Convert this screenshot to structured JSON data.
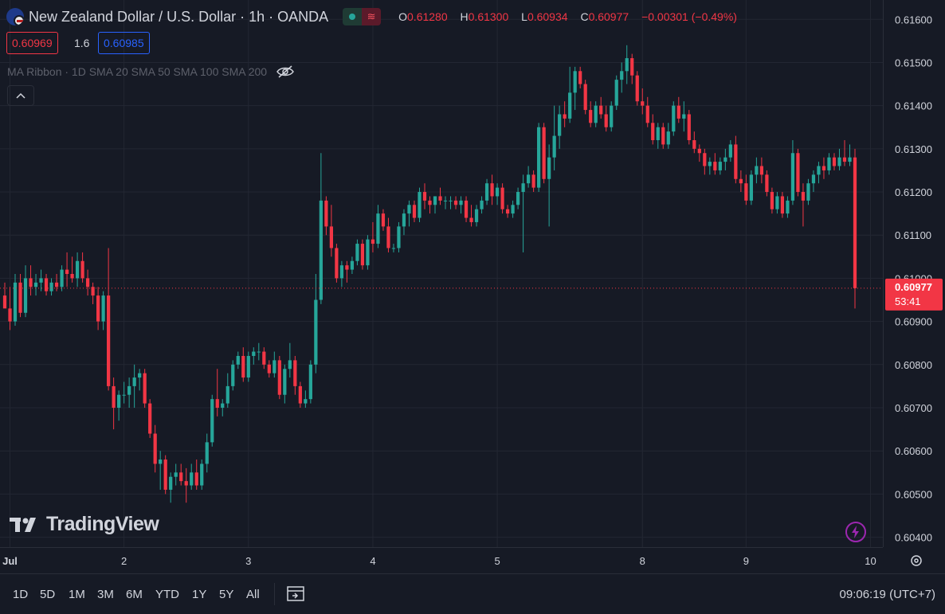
{
  "header": {
    "symbol_title": "New Zealand Dollar / U.S. Dollar · 1h · OANDA",
    "ohlc": {
      "o_label": "O",
      "o": "0.61280",
      "h_label": "H",
      "h": "0.61300",
      "l_label": "L",
      "l": "0.60934",
      "c_label": "C",
      "c": "0.60977",
      "change": "−0.00301 (−0.49%)"
    },
    "sell_price": "0.60969",
    "spread": "1.6",
    "buy_price": "0.60985"
  },
  "indicator": {
    "label": "MA Ribbon · 1D SMA 20 SMA 50 SMA 100 SMA 200",
    "icon": "eye-off-icon"
  },
  "collapse_icon": "chevron-up-icon",
  "logo_text": "TradingView",
  "current_price": {
    "value": "0.60977",
    "countdown": "53:41"
  },
  "timeframes": [
    "1D",
    "5D",
    "1M",
    "3M",
    "6M",
    "YTD",
    "1Y",
    "5Y",
    "All"
  ],
  "clock": "09:06:19 (UTC+7)",
  "colors": {
    "bg": "#161a25",
    "up": "#26a69a",
    "down": "#f23645",
    "grid": "#232733",
    "text": "#d1d4dc"
  },
  "chart_data": {
    "type": "candlestick",
    "ylim": [
      0.6039,
      0.6163
    ],
    "yticks": [
      "0.61600",
      "0.61500",
      "0.61400",
      "0.61300",
      "0.61200",
      "0.61100",
      "0.61000",
      "0.60900",
      "0.60800",
      "0.60700",
      "0.60600",
      "0.60500",
      "0.60400"
    ],
    "ytick_values": [
      0.616,
      0.615,
      0.614,
      0.613,
      0.612,
      0.611,
      0.61,
      0.609,
      0.608,
      0.607,
      0.606,
      0.605,
      0.604
    ],
    "xticks": [
      "Jul",
      "2",
      "3",
      "4",
      "5",
      "8",
      "9",
      "10"
    ],
    "xtick_bar_index": [
      1,
      23,
      47,
      71,
      95,
      123,
      143,
      167
    ],
    "current_price": 0.60977,
    "candles": [
      [
        0.6096,
        0.6099,
        0.6094,
        0.6093
      ],
      [
        0.6093,
        0.6098,
        0.6088,
        0.609
      ],
      [
        0.609,
        0.6101,
        0.6089,
        0.6099
      ],
      [
        0.6099,
        0.6101,
        0.6091,
        0.6092
      ],
      [
        0.6092,
        0.6103,
        0.6091,
        0.61
      ],
      [
        0.61,
        0.6103,
        0.6096,
        0.6098
      ],
      [
        0.6098,
        0.6101,
        0.6096,
        0.6099
      ],
      [
        0.6099,
        0.6102,
        0.6097,
        0.61
      ],
      [
        0.61,
        0.6101,
        0.6096,
        0.6097
      ],
      [
        0.6097,
        0.61,
        0.6096,
        0.6099
      ],
      [
        0.6099,
        0.6101,
        0.6097,
        0.6098
      ],
      [
        0.6098,
        0.6103,
        0.6097,
        0.6102
      ],
      [
        0.6102,
        0.6106,
        0.6098,
        0.6101
      ],
      [
        0.6101,
        0.6105,
        0.6099,
        0.61
      ],
      [
        0.61,
        0.6106,
        0.6098,
        0.6104
      ],
      [
        0.6104,
        0.6106,
        0.6099,
        0.61
      ],
      [
        0.61,
        0.6102,
        0.6096,
        0.6098
      ],
      [
        0.6098,
        0.6099,
        0.6094,
        0.6096
      ],
      [
        0.6096,
        0.6098,
        0.6088,
        0.609
      ],
      [
        0.609,
        0.6097,
        0.6088,
        0.6096
      ],
      [
        0.6096,
        0.6107,
        0.6074,
        0.6075
      ],
      [
        0.6075,
        0.6077,
        0.6065,
        0.607
      ],
      [
        0.607,
        0.6074,
        0.6067,
        0.6073
      ],
      [
        0.6073,
        0.6076,
        0.6071,
        0.6073
      ],
      [
        0.6073,
        0.6077,
        0.607,
        0.6075
      ],
      [
        0.6075,
        0.608,
        0.607,
        0.6077
      ],
      [
        0.6077,
        0.6079,
        0.6074,
        0.6078
      ],
      [
        0.6078,
        0.6079,
        0.607,
        0.6071
      ],
      [
        0.6071,
        0.6072,
        0.6063,
        0.6064
      ],
      [
        0.6064,
        0.6066,
        0.6055,
        0.6057
      ],
      [
        0.6057,
        0.606,
        0.6051,
        0.6058
      ],
      [
        0.6058,
        0.6059,
        0.605,
        0.6051
      ],
      [
        0.6051,
        0.6055,
        0.6048,
        0.6054
      ],
      [
        0.6054,
        0.6057,
        0.6052,
        0.6055
      ],
      [
        0.6055,
        0.6057,
        0.6052,
        0.6053
      ],
      [
        0.6053,
        0.6056,
        0.6048,
        0.6052
      ],
      [
        0.6052,
        0.6057,
        0.6051,
        0.6055
      ],
      [
        0.6055,
        0.6058,
        0.6051,
        0.6052
      ],
      [
        0.6052,
        0.6058,
        0.6051,
        0.6057
      ],
      [
        0.6057,
        0.6064,
        0.6055,
        0.6062
      ],
      [
        0.6062,
        0.6073,
        0.6061,
        0.6072
      ],
      [
        0.6072,
        0.6079,
        0.6068,
        0.607
      ],
      [
        0.607,
        0.6072,
        0.6068,
        0.6071
      ],
      [
        0.6071,
        0.6078,
        0.607,
        0.6075
      ],
      [
        0.6075,
        0.6081,
        0.6074,
        0.608
      ],
      [
        0.608,
        0.6083,
        0.6079,
        0.6082
      ],
      [
        0.6082,
        0.6084,
        0.6076,
        0.6077
      ],
      [
        0.6077,
        0.6083,
        0.6076,
        0.6082
      ],
      [
        0.6082,
        0.6084,
        0.608,
        0.6083
      ],
      [
        0.6083,
        0.6085,
        0.6081,
        0.6083
      ],
      [
        0.6083,
        0.6084,
        0.6079,
        0.608
      ],
      [
        0.608,
        0.6081,
        0.6077,
        0.6078
      ],
      [
        0.6078,
        0.6083,
        0.6077,
        0.6081
      ],
      [
        0.6081,
        0.6082,
        0.6072,
        0.6073
      ],
      [
        0.6073,
        0.608,
        0.6071,
        0.6079
      ],
      [
        0.6079,
        0.6085,
        0.6077,
        0.6081
      ],
      [
        0.6081,
        0.6082,
        0.6073,
        0.6075
      ],
      [
        0.6075,
        0.6076,
        0.607,
        0.6071
      ],
      [
        0.6071,
        0.6074,
        0.607,
        0.6072
      ],
      [
        0.6072,
        0.6081,
        0.6071,
        0.608
      ],
      [
        0.608,
        0.6101,
        0.6078,
        0.6095
      ],
      [
        0.6095,
        0.6129,
        0.6094,
        0.6118
      ],
      [
        0.6118,
        0.6119,
        0.611,
        0.6112
      ],
      [
        0.6112,
        0.6117,
        0.6105,
        0.6107
      ],
      [
        0.6107,
        0.6108,
        0.6099,
        0.61
      ],
      [
        0.61,
        0.6104,
        0.6098,
        0.6103
      ],
      [
        0.6103,
        0.6104,
        0.6099,
        0.6102
      ],
      [
        0.6102,
        0.6105,
        0.6101,
        0.6104
      ],
      [
        0.6104,
        0.6109,
        0.6103,
        0.6108
      ],
      [
        0.6108,
        0.6109,
        0.6102,
        0.6103
      ],
      [
        0.6103,
        0.611,
        0.6102,
        0.6109
      ],
      [
        0.6109,
        0.6113,
        0.6106,
        0.6108
      ],
      [
        0.6108,
        0.6117,
        0.6107,
        0.6115
      ],
      [
        0.6115,
        0.6116,
        0.6111,
        0.6112
      ],
      [
        0.6112,
        0.6114,
        0.6106,
        0.6107
      ],
      [
        0.6107,
        0.6108,
        0.6106,
        0.6107
      ],
      [
        0.6107,
        0.6113,
        0.6106,
        0.6112
      ],
      [
        0.6112,
        0.6116,
        0.611,
        0.6115
      ],
      [
        0.6115,
        0.6118,
        0.6112,
        0.6117
      ],
      [
        0.6117,
        0.6118,
        0.6113,
        0.6114
      ],
      [
        0.6114,
        0.6121,
        0.6113,
        0.612
      ],
      [
        0.612,
        0.6122,
        0.6116,
        0.6118
      ],
      [
        0.6118,
        0.6119,
        0.6115,
        0.6117
      ],
      [
        0.6117,
        0.6119,
        0.6115,
        0.6119
      ],
      [
        0.6119,
        0.6121,
        0.6117,
        0.6118
      ],
      [
        0.6118,
        0.6119,
        0.6116,
        0.6118
      ],
      [
        0.6118,
        0.6119,
        0.6116,
        0.6118
      ],
      [
        0.6118,
        0.6119,
        0.6116,
        0.6117
      ],
      [
        0.6117,
        0.6119,
        0.6115,
        0.6118
      ],
      [
        0.6118,
        0.6119,
        0.6113,
        0.6114
      ],
      [
        0.6114,
        0.6117,
        0.6112,
        0.6113
      ],
      [
        0.6113,
        0.6117,
        0.6112,
        0.6116
      ],
      [
        0.6116,
        0.6119,
        0.6115,
        0.6118
      ],
      [
        0.6118,
        0.6123,
        0.6117,
        0.6122
      ],
      [
        0.6122,
        0.6124,
        0.6117,
        0.6119
      ],
      [
        0.6119,
        0.6122,
        0.6117,
        0.6121
      ],
      [
        0.6121,
        0.6122,
        0.6115,
        0.6116
      ],
      [
        0.6116,
        0.6117,
        0.6114,
        0.6115
      ],
      [
        0.6115,
        0.6118,
        0.6114,
        0.6117
      ],
      [
        0.6117,
        0.6121,
        0.6116,
        0.612
      ],
      [
        0.612,
        0.6124,
        0.6106,
        0.6122
      ],
      [
        0.6122,
        0.6126,
        0.6121,
        0.6124
      ],
      [
        0.6124,
        0.6125,
        0.612,
        0.6121
      ],
      [
        0.6121,
        0.6136,
        0.612,
        0.6135
      ],
      [
        0.6135,
        0.6136,
        0.6122,
        0.6123
      ],
      [
        0.6123,
        0.6131,
        0.6112,
        0.6128
      ],
      [
        0.6128,
        0.614,
        0.6125,
        0.6133
      ],
      [
        0.6133,
        0.614,
        0.613,
        0.6138
      ],
      [
        0.6138,
        0.6141,
        0.6135,
        0.6137
      ],
      [
        0.6137,
        0.6149,
        0.6136,
        0.6143
      ],
      [
        0.6143,
        0.6149,
        0.6139,
        0.6148
      ],
      [
        0.6148,
        0.6149,
        0.6144,
        0.6145
      ],
      [
        0.6145,
        0.6146,
        0.6138,
        0.6139
      ],
      [
        0.6139,
        0.6141,
        0.6135,
        0.6136
      ],
      [
        0.6136,
        0.6141,
        0.6135,
        0.614
      ],
      [
        0.614,
        0.6142,
        0.6137,
        0.6138
      ],
      [
        0.6138,
        0.614,
        0.6134,
        0.6135
      ],
      [
        0.6135,
        0.6141,
        0.6134,
        0.614
      ],
      [
        0.614,
        0.6147,
        0.6139,
        0.6146
      ],
      [
        0.6146,
        0.615,
        0.6143,
        0.6148
      ],
      [
        0.6148,
        0.6154,
        0.6145,
        0.6151
      ],
      [
        0.6151,
        0.6152,
        0.6145,
        0.6147
      ],
      [
        0.6147,
        0.6148,
        0.614,
        0.6141
      ],
      [
        0.6141,
        0.6144,
        0.6138,
        0.614
      ],
      [
        0.614,
        0.6142,
        0.6135,
        0.6136
      ],
      [
        0.6136,
        0.6138,
        0.6131,
        0.6132
      ],
      [
        0.6132,
        0.6136,
        0.613,
        0.6135
      ],
      [
        0.6135,
        0.6136,
        0.613,
        0.6131
      ],
      [
        0.6131,
        0.6136,
        0.613,
        0.6134
      ],
      [
        0.6134,
        0.6141,
        0.6133,
        0.614
      ],
      [
        0.614,
        0.6142,
        0.6136,
        0.6137
      ],
      [
        0.6137,
        0.6141,
        0.6134,
        0.6138
      ],
      [
        0.6138,
        0.6139,
        0.6131,
        0.6132
      ],
      [
        0.6132,
        0.6134,
        0.6129,
        0.613
      ],
      [
        0.613,
        0.6131,
        0.6127,
        0.6129
      ],
      [
        0.6129,
        0.613,
        0.6124,
        0.6126
      ],
      [
        0.6126,
        0.6128,
        0.6124,
        0.6127
      ],
      [
        0.6127,
        0.6129,
        0.6124,
        0.6125
      ],
      [
        0.6125,
        0.6128,
        0.6124,
        0.6127
      ],
      [
        0.6127,
        0.613,
        0.6125,
        0.6128
      ],
      [
        0.6128,
        0.6132,
        0.6127,
        0.6131
      ],
      [
        0.6131,
        0.6133,
        0.6122,
        0.6123
      ],
      [
        0.6123,
        0.6125,
        0.612,
        0.6122
      ],
      [
        0.6122,
        0.6124,
        0.6117,
        0.6118
      ],
      [
        0.6118,
        0.6125,
        0.6117,
        0.6124
      ],
      [
        0.6124,
        0.6128,
        0.6122,
        0.6126
      ],
      [
        0.6126,
        0.6128,
        0.6122,
        0.6124
      ],
      [
        0.6124,
        0.6125,
        0.6119,
        0.612
      ],
      [
        0.612,
        0.6121,
        0.6115,
        0.6116
      ],
      [
        0.6116,
        0.612,
        0.6115,
        0.6119
      ],
      [
        0.6119,
        0.612,
        0.6114,
        0.6115
      ],
      [
        0.6115,
        0.6119,
        0.6114,
        0.6118
      ],
      [
        0.6118,
        0.6132,
        0.6117,
        0.6129
      ],
      [
        0.6129,
        0.613,
        0.6119,
        0.612
      ],
      [
        0.612,
        0.6122,
        0.6112,
        0.6118
      ],
      [
        0.6118,
        0.6123,
        0.6117,
        0.6122
      ],
      [
        0.6122,
        0.6125,
        0.612,
        0.6124
      ],
      [
        0.6124,
        0.6127,
        0.6122,
        0.6126
      ],
      [
        0.6126,
        0.6128,
        0.6123,
        0.6125
      ],
      [
        0.6125,
        0.6129,
        0.6124,
        0.6128
      ],
      [
        0.6128,
        0.6129,
        0.6125,
        0.6126
      ],
      [
        0.6126,
        0.613,
        0.6125,
        0.6128
      ],
      [
        0.6128,
        0.6132,
        0.6126,
        0.6127
      ],
      [
        0.6127,
        0.6131,
        0.6126,
        0.6128
      ],
      [
        0.6128,
        0.613,
        0.6093,
        0.60977
      ]
    ]
  }
}
